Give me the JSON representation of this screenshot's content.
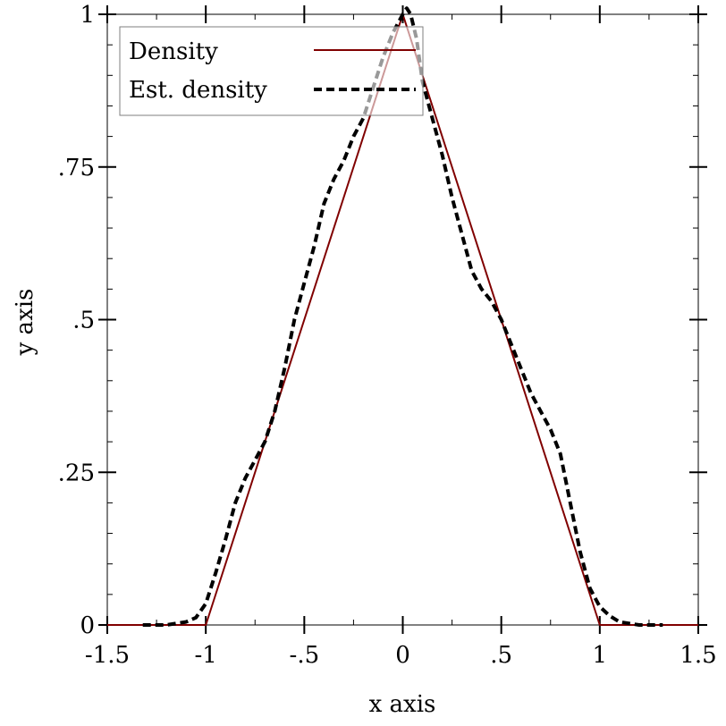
{
  "chart_data": {
    "type": "line",
    "xlabel": "x axis",
    "ylabel": "y axis",
    "xlim": [
      -1.5,
      1.5
    ],
    "ylim": [
      0,
      1
    ],
    "x_ticks": [
      {
        "value": -1.5,
        "label": "-1.5"
      },
      {
        "value": -1,
        "label": "-1"
      },
      {
        "value": -0.5,
        "label": "-.5"
      },
      {
        "value": 0,
        "label": "0"
      },
      {
        "value": 0.5,
        "label": ".5"
      },
      {
        "value": 1,
        "label": "1"
      },
      {
        "value": 1.5,
        "label": "1.5"
      }
    ],
    "y_ticks": [
      {
        "value": 0,
        "label": "0"
      },
      {
        "value": 0.25,
        "label": ".25"
      },
      {
        "value": 0.5,
        "label": ".5"
      },
      {
        "value": 0.75,
        "label": ".75"
      },
      {
        "value": 1,
        "label": "1"
      }
    ],
    "x_minor_step": 0.25,
    "y_minor_step": 0.05,
    "legend_position": "top-left",
    "series": [
      {
        "name": "Density",
        "style": "solid",
        "color": "#800000",
        "x": [
          -1.5,
          -1,
          0,
          1,
          1.5
        ],
        "y": [
          0,
          0,
          1,
          0,
          0
        ]
      },
      {
        "name": "Est. density",
        "style": "dashed",
        "color": "#000000",
        "x": [
          -1.32,
          -1.2,
          -1.1,
          -1.05,
          -1.0,
          -0.95,
          -0.9,
          -0.85,
          -0.8,
          -0.75,
          -0.7,
          -0.65,
          -0.6,
          -0.55,
          -0.5,
          -0.45,
          -0.4,
          -0.35,
          -0.3,
          -0.25,
          -0.2,
          -0.15,
          -0.1,
          -0.05,
          0.0,
          0.02,
          0.04,
          0.07,
          0.1,
          0.15,
          0.2,
          0.25,
          0.3,
          0.35,
          0.4,
          0.45,
          0.5,
          0.55,
          0.6,
          0.65,
          0.7,
          0.75,
          0.8,
          0.85,
          0.9,
          0.95,
          1.0,
          1.05,
          1.1,
          1.2,
          1.32
        ],
        "y": [
          0.0,
          0.0,
          0.005,
          0.012,
          0.035,
          0.085,
          0.14,
          0.2,
          0.24,
          0.27,
          0.3,
          0.35,
          0.42,
          0.5,
          0.56,
          0.62,
          0.69,
          0.73,
          0.76,
          0.8,
          0.83,
          0.88,
          0.93,
          0.97,
          1.0,
          1.01,
          1.0,
          0.96,
          0.89,
          0.83,
          0.77,
          0.7,
          0.64,
          0.58,
          0.55,
          0.53,
          0.5,
          0.46,
          0.42,
          0.38,
          0.35,
          0.32,
          0.28,
          0.2,
          0.12,
          0.06,
          0.03,
          0.015,
          0.005,
          0.0,
          0.0
        ]
      }
    ]
  }
}
